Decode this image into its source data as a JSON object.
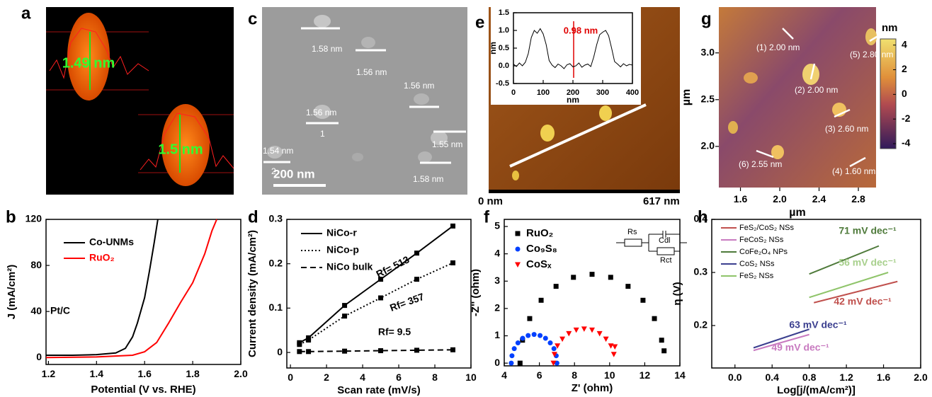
{
  "images": {
    "a": {
      "panel": "a",
      "labels": [
        "1.49 nm",
        "1.5 nm"
      ]
    },
    "c": {
      "panel": "c",
      "labels": [
        "1.58 nm",
        "1.56 nm",
        "1.56 nm",
        "1.56 nm",
        "1",
        "1.54 nm",
        "2",
        "1.55 nm",
        "1.58 nm"
      ],
      "scale": "200 nm"
    },
    "e": {
      "panel": "e",
      "scale_start": "0 nm",
      "scale_end": "617 nm"
    }
  },
  "chart_data": [
    {
      "type": "line",
      "xlabel": "nm",
      "ylabel": "nm",
      "xlim": [
        0,
        400
      ],
      "ylim": [
        -0.5,
        1.5
      ],
      "xticks": [
        0,
        100,
        200,
        300,
        400
      ],
      "yticks": [
        -0.5,
        {
          "value": 0,
          "label": "0.0"
        },
        0.5,
        {
          "value": 1,
          "label": "1.0"
        },
        1.5
      ],
      "x": [
        0,
        10,
        20,
        30,
        40,
        50,
        60,
        70,
        80,
        90,
        100,
        110,
        120,
        130,
        140,
        150,
        160,
        170,
        180,
        190,
        200,
        210,
        220,
        230,
        240,
        250,
        260,
        270,
        280,
        290,
        300,
        310,
        320,
        330,
        340,
        350,
        360,
        370,
        380,
        390,
        400
      ],
      "series": [
        {
          "color": "#000000",
          "values": [
            0.05,
            -0.02,
            0.08,
            0.0,
            0.1,
            0.35,
            0.8,
            1.0,
            0.92,
            1.05,
            0.9,
            0.6,
            0.15,
            0.02,
            -0.05,
            0.05,
            0.0,
            -0.08,
            0.03,
            0.06,
            -0.03,
            0.0,
            0.08,
            -0.04,
            0.02,
            0.05,
            -0.02,
            0.25,
            0.6,
            0.88,
            0.95,
            1.0,
            0.85,
            0.5,
            0.12,
            0.05,
            -0.03,
            0.06,
            0.0,
            0.04,
            0.02
          ]
        }
      ],
      "annotations": [
        {
          "text": "0.98 nm",
          "color": "#e00000"
        }
      ]
    },
    {
      "type": "image",
      "panel": "g",
      "xlabel": "µm",
      "ylabel": "µm",
      "xlim": [
        1.38,
        2.98
      ],
      "ylim": [
        1.56,
        3.49
      ],
      "xticks": [
        1.6,
        {
          "value": 2,
          "label": "2.0"
        },
        2.4,
        2.8
      ],
      "yticks": [
        {
          "value": 2,
          "label": "2.0"
        },
        2.5,
        {
          "value": 3,
          "label": "3.0"
        }
      ],
      "colorbar_label": "nm",
      "clim": [
        -4.4,
        4.5
      ],
      "colorbar_ticks": [
        4,
        2,
        0,
        -2,
        -4
      ],
      "annotations": [
        {
          "text": "(1) 2.00 nm",
          "color": "#ffffff"
        },
        {
          "text": "(2) 2.00 nm",
          "color": "#ffffff"
        },
        {
          "text": "(3) 2.60 nm",
          "color": "#ffffff"
        },
        {
          "text": "(4) 1.60 nm",
          "color": "#ffffff"
        },
        {
          "text": "(5) 2.80 nm",
          "color": "#ffffff"
        },
        {
          "text": "(6) 2.55 nm",
          "color": "#ffffff"
        }
      ]
    },
    {
      "type": "line",
      "panel": "b",
      "xlabel": "Potential (V vs. RHE)",
      "ylabel": "J (mA/cm²)",
      "xlim": [
        1.19,
        2.0
      ],
      "ylim": [
        -6,
        120
      ],
      "xticks": [
        1.2,
        1.4,
        1.6,
        1.8,
        {
          "value": 2,
          "label": "2.0"
        }
      ],
      "yticks": [
        0,
        40,
        80,
        120
      ],
      "legend": "upper left",
      "series": [
        {
          "name": "Co-UNMs",
          "color": "#000000",
          "x": [
            1.19,
            1.3,
            1.4,
            1.48,
            1.52,
            1.55,
            1.57,
            1.6,
            1.62,
            1.64,
            1.655
          ],
          "values": [
            2,
            2,
            2.5,
            4,
            8,
            18,
            30,
            52,
            75,
            100,
            120
          ]
        },
        {
          "name": "RuO₂",
          "color": "#ff0000",
          "x": [
            1.19,
            1.4,
            1.55,
            1.6,
            1.65,
            1.7,
            1.75,
            1.8,
            1.85,
            1.88,
            1.9
          ],
          "values": [
            0,
            0.5,
            2,
            5,
            13,
            30,
            48,
            65,
            90,
            110,
            120
          ]
        }
      ],
      "annotations": [
        {
          "text": "Pt/C",
          "color": "#000000"
        }
      ]
    },
    {
      "type": "line",
      "panel": "d",
      "xlabel": "Scan rate (mV/s)",
      "ylabel": "Current density (mA/cm²)",
      "xlim": [
        -0.2,
        10
      ],
      "ylim": [
        -0.035,
        0.3
      ],
      "xticks": [
        0,
        2,
        4,
        6,
        8,
        10
      ],
      "yticks": [
        0,
        0.1,
        0.2,
        0.3
      ],
      "legend": "upper left",
      "x": [
        0.5,
        1,
        3,
        5,
        7,
        9
      ],
      "series": [
        {
          "name": "NiCo-r",
          "color": "#000000",
          "style": "solid",
          "marker": "square",
          "values": [
            0.022,
            0.033,
            0.106,
            0.165,
            0.224,
            0.285
          ]
        },
        {
          "name": "NiCo-p",
          "color": "#000000",
          "style": "dotted",
          "marker": "square",
          "values": [
            0.018,
            0.028,
            0.082,
            0.123,
            0.165,
            0.202
          ]
        },
        {
          "name": "NiCo bulk",
          "color": "#000000",
          "style": "dashed",
          "marker": "square",
          "values": [
            0.002,
            0.002,
            0.003,
            0.004,
            0.005,
            0.006
          ]
        }
      ],
      "annotations": [
        {
          "text": "Rf= 513",
          "color": "#000000"
        },
        {
          "text": "Rf= 357",
          "color": "#000000"
        },
        {
          "text": "Rf= 9.5",
          "color": "#000000"
        }
      ]
    },
    {
      "type": "scatter",
      "panel": "f",
      "xlabel": "Z' (ohm)",
      "ylabel": "-Z'' (ohm)",
      "xlim": [
        4,
        14
      ],
      "ylim": [
        -0.1,
        5.26
      ],
      "xticks": [
        4,
        6,
        8,
        10,
        12,
        14
      ],
      "yticks": [
        0,
        1,
        2,
        3,
        4,
        5
      ],
      "legend": "upper left",
      "circuit": [
        "Rs",
        "Cdl",
        "Rct"
      ],
      "series": [
        {
          "name": "RuO₂",
          "color": "#000000",
          "marker": "square",
          "x": [
            4.9,
            5.04,
            5.45,
            6.1,
            6.95,
            7.94,
            9.0,
            10.06,
            11.05,
            11.9,
            12.55,
            12.96,
            13.1
          ],
          "values": [
            0,
            0.84,
            1.63,
            2.3,
            2.81,
            3.14,
            3.25,
            3.14,
            2.81,
            2.3,
            1.63,
            0.84,
            0.45
          ]
        },
        {
          "name": "Co₉S₈",
          "color": "#0040ff",
          "marker": "circle",
          "x": [
            4.4,
            4.44,
            4.57,
            4.78,
            5.05,
            5.36,
            5.7,
            6.04,
            6.35,
            6.62,
            6.83,
            6.96,
            7.0
          ],
          "values": [
            0,
            0.27,
            0.53,
            0.74,
            0.91,
            1.01,
            1.05,
            1.01,
            0.91,
            0.74,
            0.53,
            0.27,
            0
          ]
        },
        {
          "name": "CoSₓ",
          "color": "#ff0000",
          "marker": "triangle",
          "x": [
            6.8,
            6.86,
            7.03,
            7.31,
            7.68,
            8.1,
            8.55,
            9.0,
            9.43,
            9.79,
            10.07,
            10.24,
            10.3
          ],
          "values": [
            0,
            0.32,
            0.63,
            0.88,
            1.08,
            1.21,
            1.25,
            1.21,
            1.08,
            0.88,
            0.63,
            0.32,
            0.6
          ]
        }
      ]
    },
    {
      "type": "line",
      "panel": "h",
      "xlabel": "Log[j/(mA/cm²)]",
      "ylabel": "η (V)",
      "xlim": [
        -0.25,
        2.0
      ],
      "ylim": [
        0.12,
        0.4
      ],
      "xticks": [
        {
          "value": 0,
          "label": "0.0"
        },
        0.4,
        0.8,
        1.2,
        1.6,
        {
          "value": 2,
          "label": "2.0"
        }
      ],
      "yticks": [
        0.2,
        0.3,
        0.4
      ],
      "legend": "upper left",
      "series": [
        {
          "name": "FeS₂/CoS₂ NSs",
          "color": "#c0504d",
          "x": [
            0.85,
            1.75
          ],
          "values": [
            0.243,
            0.283
          ]
        },
        {
          "name": "FeCoS₂ NSs",
          "color": "#c87ac0",
          "x": [
            0.2,
            0.8
          ],
          "values": [
            0.153,
            0.183
          ]
        },
        {
          "name": "CoFe₂O₄ NPs",
          "color": "#4e7a3a",
          "x": [
            0.8,
            1.55
          ],
          "values": [
            0.297,
            0.35
          ]
        },
        {
          "name": "CoS₂ NSs",
          "color": "#3b3f8f",
          "x": [
            0.2,
            0.8
          ],
          "values": [
            0.158,
            0.193
          ]
        },
        {
          "name": "FeS₂ NSs",
          "color": "#8fc46a",
          "x": [
            0.8,
            1.65
          ],
          "values": [
            0.253,
            0.3
          ]
        }
      ],
      "annotations": [
        {
          "text": "71 mV dec⁻¹",
          "color": "#4e7a3a"
        },
        {
          "text": "56 mV dec⁻¹",
          "color": "#a8d08d"
        },
        {
          "text": "42 mV dec⁻¹",
          "color": "#c0504d"
        },
        {
          "text": "63 mV dec⁻¹",
          "color": "#3b3f8f"
        },
        {
          "text": "49 mV dec⁻¹",
          "color": "#c87ac0"
        }
      ]
    }
  ]
}
